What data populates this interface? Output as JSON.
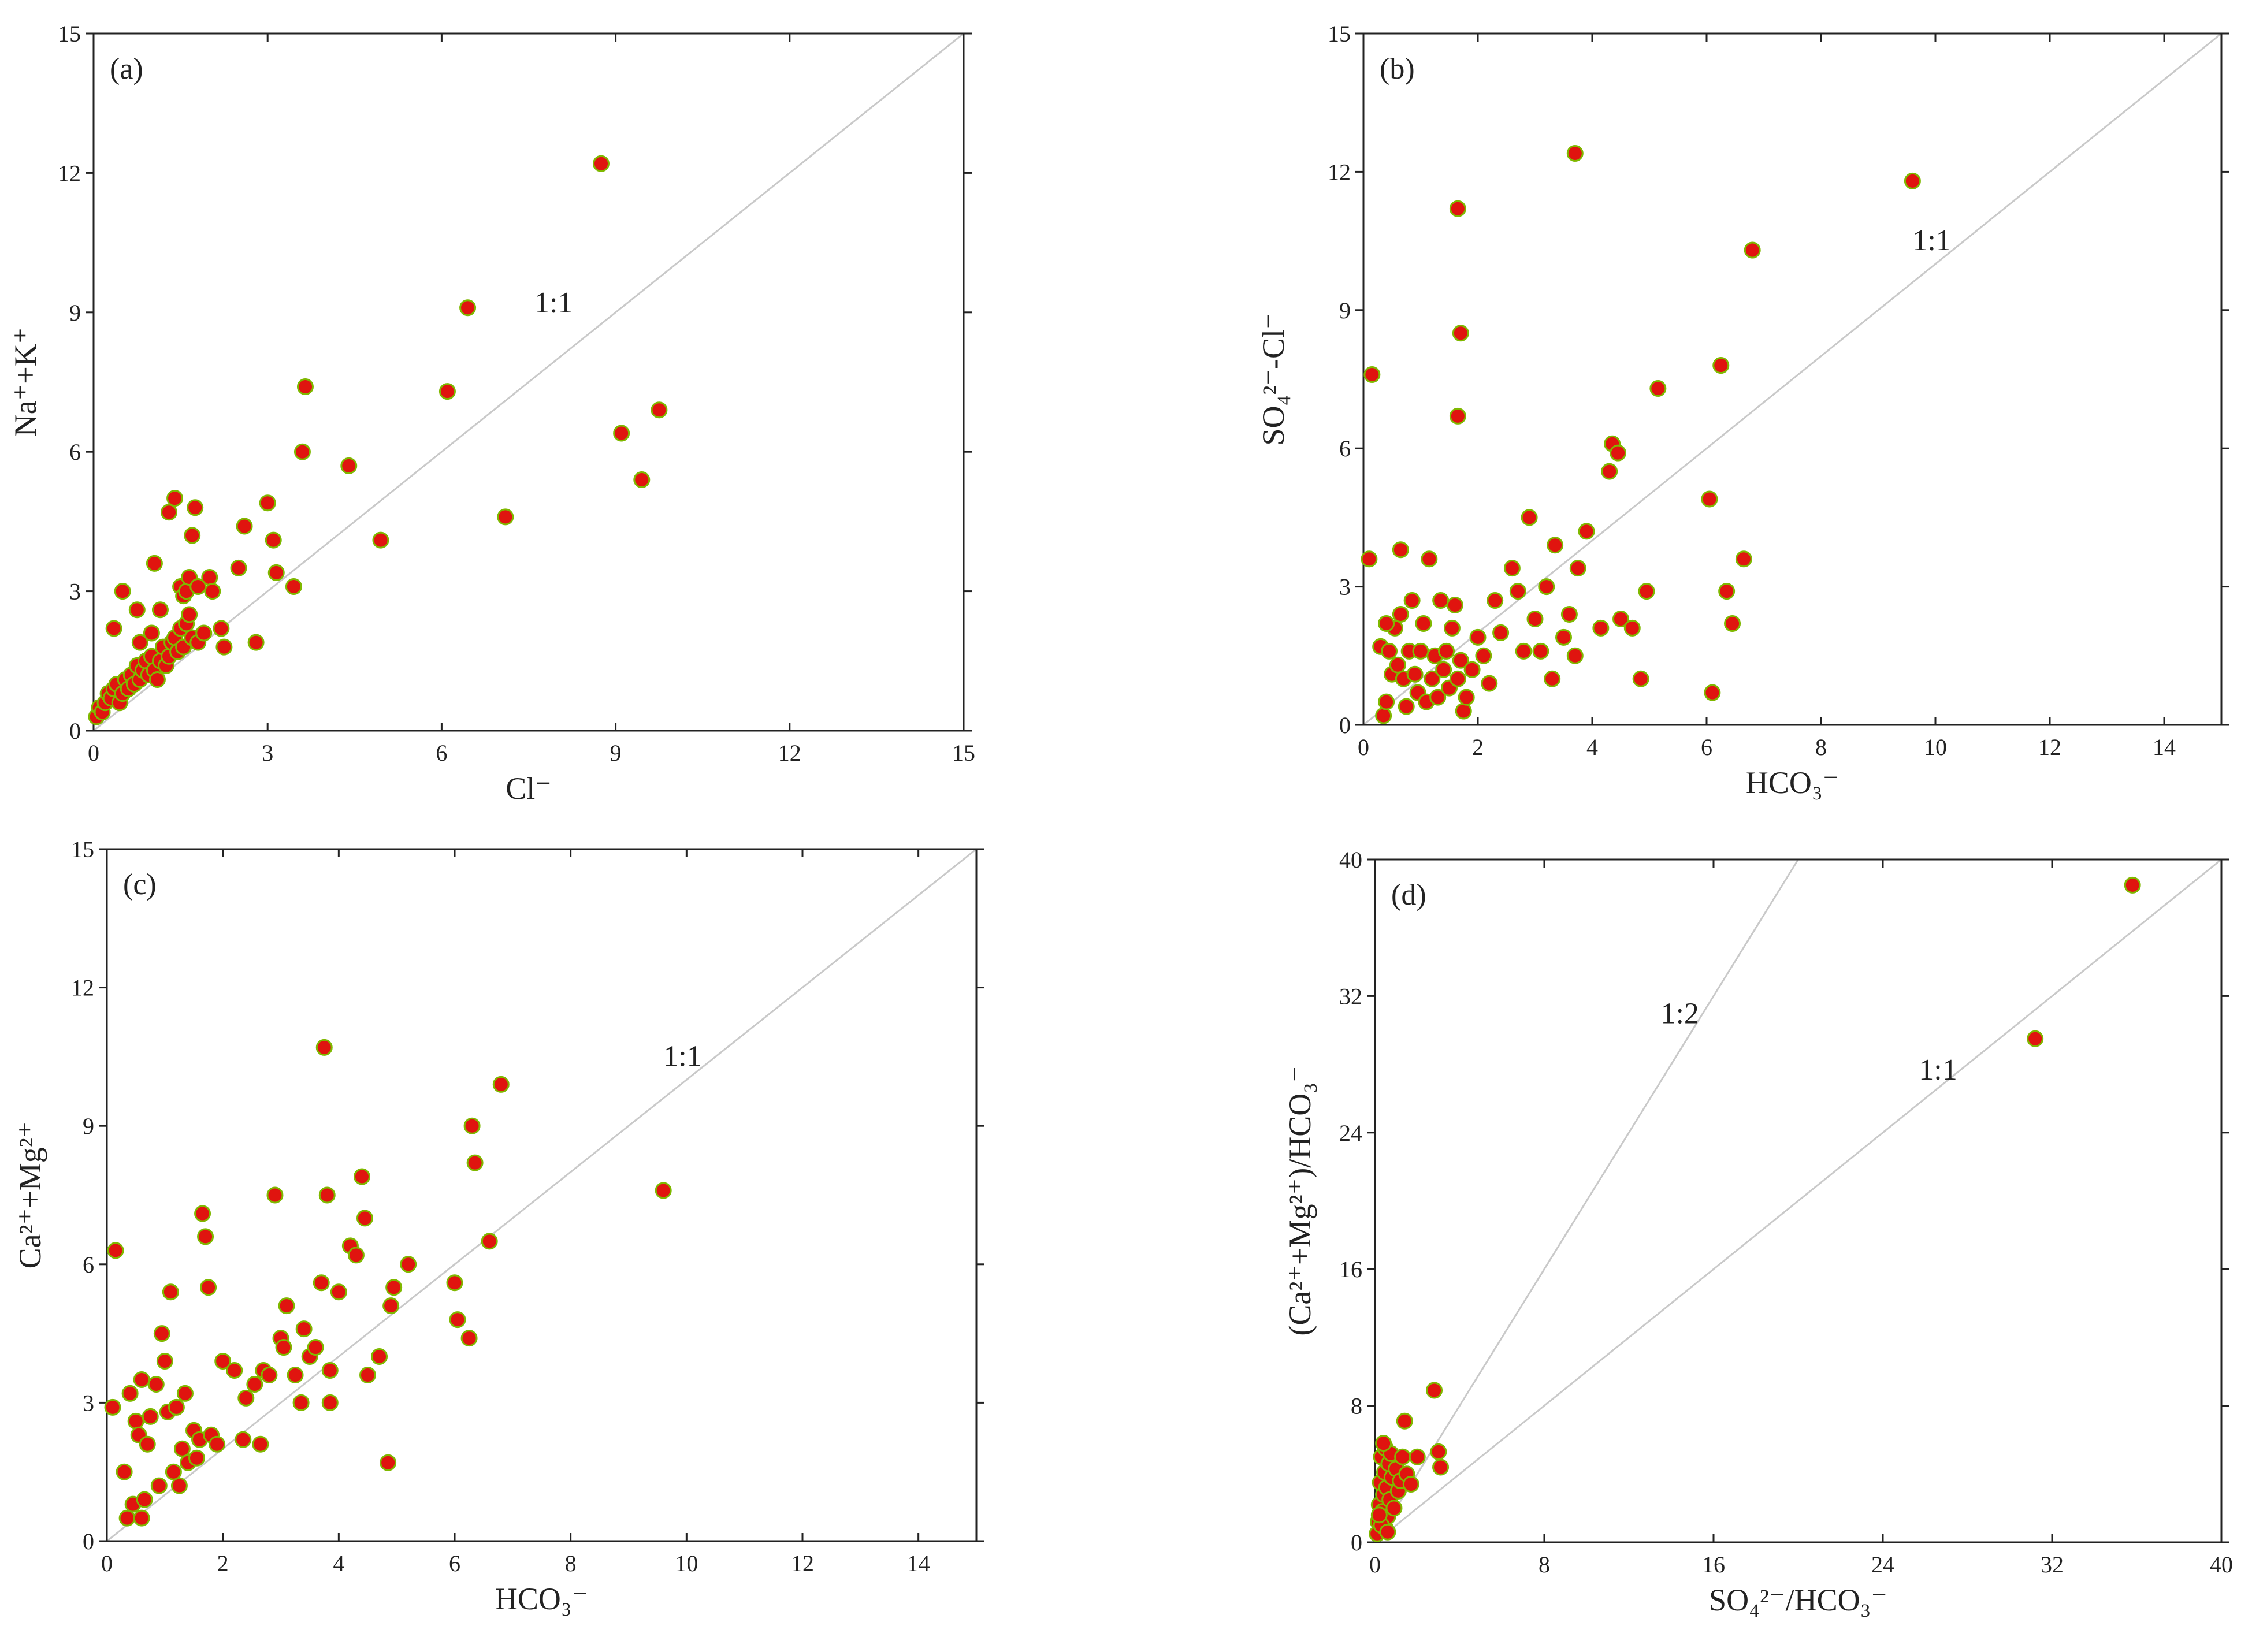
{
  "chart_data": [
    {
      "type": "scatter",
      "panel_label": "(a)",
      "xlabel": "Cl⁻",
      "ylabel": "Na⁺+K⁺",
      "xlim": [
        0,
        15
      ],
      "ylim": [
        0,
        15
      ],
      "xticks": [
        0,
        3,
        6,
        9,
        12,
        15
      ],
      "yticks": [
        0,
        3,
        6,
        9,
        12,
        15
      ],
      "ref_lines": [
        {
          "label": "1:1",
          "slope": 1,
          "label_at": [
            7.6,
            9.0
          ]
        }
      ],
      "points": [
        [
          0.05,
          0.3
        ],
        [
          0.1,
          0.5
        ],
        [
          0.15,
          0.4
        ],
        [
          0.2,
          0.6
        ],
        [
          0.25,
          0.8
        ],
        [
          0.3,
          0.7
        ],
        [
          0.35,
          0.9
        ],
        [
          0.4,
          1.0
        ],
        [
          0.45,
          0.6
        ],
        [
          0.5,
          0.8
        ],
        [
          0.55,
          1.1
        ],
        [
          0.6,
          0.9
        ],
        [
          0.65,
          1.2
        ],
        [
          0.7,
          1.0
        ],
        [
          0.75,
          1.4
        ],
        [
          0.8,
          1.1
        ],
        [
          0.85,
          1.3
        ],
        [
          0.9,
          1.5
        ],
        [
          0.95,
          1.2
        ],
        [
          1.0,
          1.6
        ],
        [
          1.05,
          1.3
        ],
        [
          1.1,
          1.1
        ],
        [
          1.15,
          1.5
        ],
        [
          1.2,
          1.8
        ],
        [
          1.25,
          1.4
        ],
        [
          1.3,
          1.6
        ],
        [
          1.35,
          1.9
        ],
        [
          1.4,
          2.0
        ],
        [
          1.45,
          1.7
        ],
        [
          1.5,
          2.2
        ],
        [
          1.55,
          1.8
        ],
        [
          1.6,
          2.3
        ],
        [
          1.65,
          2.5
        ],
        [
          1.7,
          2.0
        ],
        [
          1.8,
          1.9
        ],
        [
          1.9,
          2.1
        ],
        [
          0.35,
          2.2
        ],
        [
          0.5,
          3.0
        ],
        [
          0.75,
          2.6
        ],
        [
          0.8,
          1.9
        ],
        [
          1.0,
          2.1
        ],
        [
          1.05,
          3.6
        ],
        [
          1.15,
          2.6
        ],
        [
          1.3,
          4.7
        ],
        [
          1.4,
          5.0
        ],
        [
          1.5,
          3.1
        ],
        [
          1.55,
          2.9
        ],
        [
          1.6,
          3.0
        ],
        [
          1.65,
          3.3
        ],
        [
          1.7,
          4.2
        ],
        [
          1.75,
          4.8
        ],
        [
          1.8,
          3.1
        ],
        [
          2.0,
          3.3
        ],
        [
          2.05,
          3.0
        ],
        [
          2.2,
          2.2
        ],
        [
          2.25,
          1.8
        ],
        [
          2.5,
          3.5
        ],
        [
          2.6,
          4.4
        ],
        [
          2.8,
          1.9
        ],
        [
          3.0,
          4.9
        ],
        [
          3.1,
          4.1
        ],
        [
          3.15,
          3.4
        ],
        [
          3.45,
          3.1
        ],
        [
          3.6,
          6.0
        ],
        [
          3.65,
          7.4
        ],
        [
          4.4,
          5.7
        ],
        [
          4.95,
          4.1
        ],
        [
          6.1,
          7.3
        ],
        [
          6.45,
          9.1
        ],
        [
          7.1,
          4.6
        ],
        [
          8.75,
          12.2
        ],
        [
          9.1,
          6.4
        ],
        [
          9.45,
          5.4
        ],
        [
          9.75,
          6.9
        ]
      ]
    },
    {
      "type": "scatter",
      "panel_label": "(b)",
      "xlabel": "HCO₃⁻",
      "ylabel": "SO₄²⁻-Cl⁻",
      "xlim": [
        0,
        15
      ],
      "ylim": [
        0,
        15
      ],
      "xticks": [
        0,
        2,
        4,
        6,
        8,
        10,
        12,
        14
      ],
      "yticks": [
        0,
        3,
        6,
        9,
        12,
        15
      ],
      "ref_lines": [
        {
          "label": "1:1",
          "slope": 1,
          "label_at": [
            9.6,
            10.3
          ]
        }
      ],
      "points": [
        [
          0.15,
          7.6
        ],
        [
          0.1,
          3.6
        ],
        [
          0.3,
          1.7
        ],
        [
          0.35,
          0.2
        ],
        [
          0.4,
          0.5
        ],
        [
          0.45,
          1.6
        ],
        [
          0.5,
          1.1
        ],
        [
          0.55,
          2.1
        ],
        [
          0.6,
          1.3
        ],
        [
          0.65,
          2.4
        ],
        [
          0.7,
          1.0
        ],
        [
          0.75,
          0.4
        ],
        [
          0.8,
          1.6
        ],
        [
          0.85,
          2.7
        ],
        [
          0.9,
          1.1
        ],
        [
          0.95,
          0.7
        ],
        [
          1.0,
          1.6
        ],
        [
          1.05,
          2.2
        ],
        [
          1.1,
          0.5
        ],
        [
          1.15,
          3.6
        ],
        [
          1.2,
          1.0
        ],
        [
          1.25,
          1.5
        ],
        [
          1.3,
          0.6
        ],
        [
          1.35,
          2.7
        ],
        [
          1.4,
          1.2
        ],
        [
          1.45,
          1.6
        ],
        [
          1.5,
          0.8
        ],
        [
          1.55,
          2.1
        ],
        [
          1.6,
          2.6
        ],
        [
          1.65,
          1.0
        ],
        [
          1.7,
          1.4
        ],
        [
          1.75,
          0.3
        ],
        [
          1.8,
          0.6
        ],
        [
          1.9,
          1.2
        ],
        [
          2.0,
          1.9
        ],
        [
          2.1,
          1.5
        ],
        [
          2.2,
          0.9
        ],
        [
          2.3,
          2.7
        ],
        [
          2.4,
          2.0
        ],
        [
          2.6,
          3.4
        ],
        [
          2.7,
          2.9
        ],
        [
          2.8,
          1.6
        ],
        [
          2.9,
          4.5
        ],
        [
          3.0,
          2.3
        ],
        [
          3.1,
          1.6
        ],
        [
          3.2,
          3.0
        ],
        [
          3.3,
          1.0
        ],
        [
          3.35,
          3.9
        ],
        [
          3.5,
          1.9
        ],
        [
          3.6,
          2.4
        ],
        [
          3.7,
          1.5
        ],
        [
          3.75,
          3.4
        ],
        [
          3.9,
          4.2
        ],
        [
          4.15,
          2.1
        ],
        [
          4.3,
          5.5
        ],
        [
          4.35,
          6.1
        ],
        [
          4.45,
          5.9
        ],
        [
          4.5,
          2.3
        ],
        [
          4.7,
          2.1
        ],
        [
          4.85,
          1.0
        ],
        [
          4.95,
          2.9
        ],
        [
          5.15,
          7.3
        ],
        [
          6.05,
          4.9
        ],
        [
          6.1,
          0.7
        ],
        [
          6.25,
          7.8
        ],
        [
          6.35,
          2.9
        ],
        [
          6.45,
          2.2
        ],
        [
          6.65,
          3.6
        ],
        [
          6.8,
          10.3
        ],
        [
          9.6,
          11.8
        ],
        [
          1.65,
          11.2
        ],
        [
          1.7,
          8.5
        ],
        [
          1.65,
          6.7
        ],
        [
          3.7,
          12.4
        ],
        [
          0.65,
          3.8
        ],
        [
          0.4,
          2.2
        ]
      ]
    },
    {
      "type": "scatter",
      "panel_label": "(c)",
      "xlabel": "HCO₃⁻",
      "ylabel": "Ca²⁺+Mg²⁺",
      "xlim": [
        0,
        15
      ],
      "ylim": [
        0,
        15
      ],
      "xticks": [
        0,
        2,
        4,
        6,
        8,
        10,
        12,
        14
      ],
      "yticks": [
        0,
        3,
        6,
        9,
        12,
        15
      ],
      "ref_lines": [
        {
          "label": "1:1",
          "slope": 1,
          "label_at": [
            9.6,
            10.3
          ]
        }
      ],
      "points": [
        [
          0.15,
          6.3
        ],
        [
          0.1,
          2.9
        ],
        [
          0.3,
          1.5
        ],
        [
          0.35,
          0.5
        ],
        [
          0.4,
          3.2
        ],
        [
          0.45,
          0.8
        ],
        [
          0.5,
          2.6
        ],
        [
          0.55,
          2.3
        ],
        [
          0.6,
          3.5
        ],
        [
          0.65,
          0.9
        ],
        [
          0.7,
          2.1
        ],
        [
          0.75,
          2.7
        ],
        [
          0.85,
          3.4
        ],
        [
          0.9,
          1.2
        ],
        [
          0.95,
          4.5
        ],
        [
          1.0,
          3.9
        ],
        [
          1.05,
          2.8
        ],
        [
          1.1,
          5.4
        ],
        [
          1.15,
          1.5
        ],
        [
          1.2,
          2.9
        ],
        [
          1.25,
          1.2
        ],
        [
          1.3,
          2.0
        ],
        [
          1.35,
          3.2
        ],
        [
          1.4,
          1.7
        ],
        [
          1.5,
          2.4
        ],
        [
          1.55,
          1.8
        ],
        [
          1.6,
          2.2
        ],
        [
          1.65,
          7.1
        ],
        [
          1.7,
          6.6
        ],
        [
          1.75,
          5.5
        ],
        [
          1.8,
          2.3
        ],
        [
          1.9,
          2.1
        ],
        [
          2.0,
          3.9
        ],
        [
          2.2,
          3.7
        ],
        [
          2.35,
          2.2
        ],
        [
          2.4,
          3.1
        ],
        [
          2.55,
          3.4
        ],
        [
          2.65,
          2.1
        ],
        [
          2.7,
          3.7
        ],
        [
          2.8,
          3.6
        ],
        [
          2.9,
          7.5
        ],
        [
          3.0,
          4.4
        ],
        [
          3.05,
          4.2
        ],
        [
          3.1,
          5.1
        ],
        [
          3.25,
          3.6
        ],
        [
          3.35,
          3.0
        ],
        [
          3.4,
          4.6
        ],
        [
          3.5,
          4.0
        ],
        [
          3.6,
          4.2
        ],
        [
          3.7,
          5.6
        ],
        [
          3.75,
          10.7
        ],
        [
          3.8,
          7.5
        ],
        [
          3.85,
          3.0
        ],
        [
          3.85,
          3.7
        ],
        [
          4.0,
          5.4
        ],
        [
          4.2,
          6.4
        ],
        [
          4.3,
          6.2
        ],
        [
          4.4,
          7.9
        ],
        [
          4.45,
          7.0
        ],
        [
          4.5,
          3.6
        ],
        [
          4.7,
          4.0
        ],
        [
          4.85,
          1.7
        ],
        [
          4.9,
          5.1
        ],
        [
          4.95,
          5.5
        ],
        [
          5.2,
          6.0
        ],
        [
          6.0,
          5.6
        ],
        [
          6.05,
          4.8
        ],
        [
          6.25,
          4.4
        ],
        [
          6.3,
          9.0
        ],
        [
          6.35,
          8.2
        ],
        [
          6.6,
          6.5
        ],
        [
          6.8,
          9.9
        ],
        [
          9.6,
          7.6
        ],
        [
          0.6,
          0.5
        ]
      ]
    },
    {
      "type": "scatter",
      "panel_label": "(d)",
      "xlabel": "SO₄²⁻/HCO₃⁻",
      "ylabel": "(Ca²⁺+Mg²⁺)/HCO₃⁻",
      "xlim": [
        0,
        40
      ],
      "ylim": [
        0,
        40
      ],
      "xticks": [
        0,
        8,
        16,
        24,
        32,
        40
      ],
      "yticks": [
        0,
        8,
        16,
        24,
        32,
        40
      ],
      "ref_lines": [
        {
          "label": "1:2",
          "slope": 2,
          "label_at": [
            13.5,
            30.4
          ]
        },
        {
          "label": "1:1",
          "slope": 1,
          "label_at": [
            25.7,
            27.1
          ]
        }
      ],
      "points": [
        [
          0.1,
          0.5
        ],
        [
          0.15,
          1.2
        ],
        [
          0.2,
          2.2
        ],
        [
          0.25,
          3.5
        ],
        [
          0.3,
          5.0
        ],
        [
          0.35,
          1.8
        ],
        [
          0.4,
          2.8
        ],
        [
          0.45,
          4.1
        ],
        [
          0.5,
          0.8
        ],
        [
          0.5,
          5.5
        ],
        [
          0.55,
          3.2
        ],
        [
          0.6,
          1.5
        ],
        [
          0.65,
          4.6
        ],
        [
          0.7,
          2.5
        ],
        [
          0.75,
          5.2
        ],
        [
          0.8,
          3.8
        ],
        [
          0.9,
          2.0
        ],
        [
          1.0,
          4.3
        ],
        [
          1.1,
          3.0
        ],
        [
          1.2,
          3.6
        ],
        [
          1.3,
          5.0
        ],
        [
          1.4,
          7.1
        ],
        [
          1.5,
          4.0
        ],
        [
          1.7,
          3.4
        ],
        [
          2.0,
          5.0
        ],
        [
          2.8,
          8.9
        ],
        [
          3.0,
          5.3
        ],
        [
          3.1,
          4.4
        ],
        [
          31.2,
          29.5
        ],
        [
          35.8,
          38.5
        ],
        [
          0.3,
          1.0
        ],
        [
          0.2,
          1.6
        ],
        [
          0.6,
          0.6
        ],
        [
          0.4,
          5.8
        ]
      ]
    }
  ]
}
